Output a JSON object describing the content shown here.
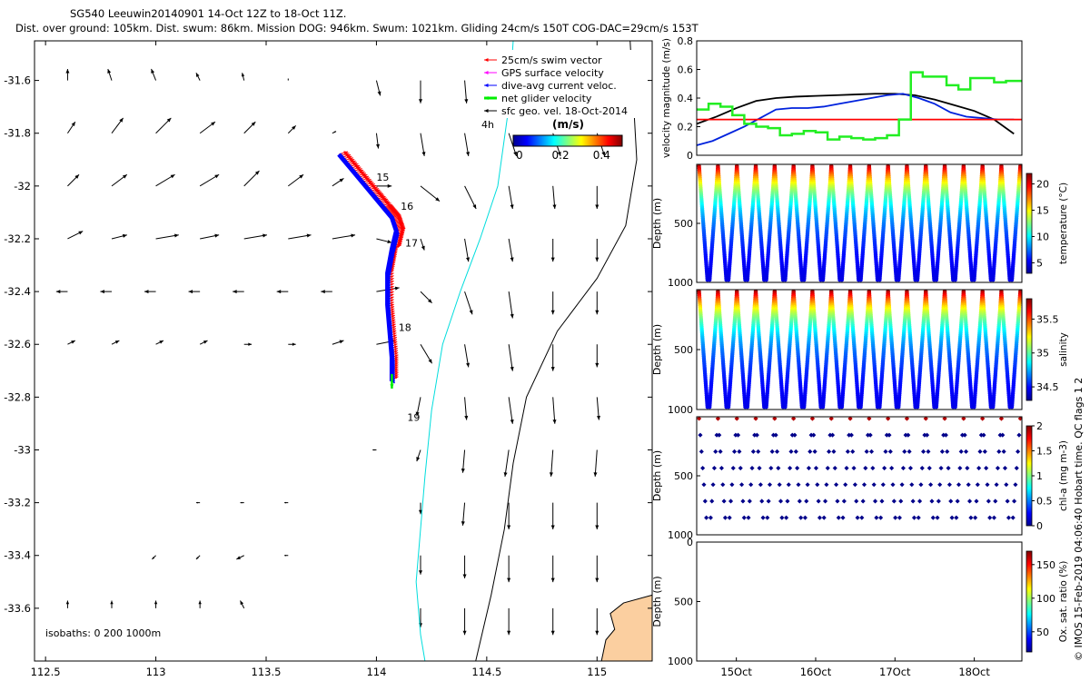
{
  "title_line1": "SG540 Leeuwin20140901 14-Oct 12Z to 18-Oct 11Z.",
  "title_line2": "Dist. over ground: 105km. Dist. swum: 86km. Mission DOG: 946km. Swum: 1021km. Gliding 24cm/s 150T COG-DAC=29cm/s 153T",
  "colors": {
    "swim": "#ff0000",
    "gps": "#ff00ff",
    "dac": "#0000ff",
    "net": "#00ee00",
    "geo": "#000000",
    "isobath200": "#00dddd",
    "coast": "#000000",
    "land": "#fbcfa0",
    "vel_black": "#000000",
    "vel_blue": "#0022dd",
    "vel_red": "#ff0000",
    "vel_green": "#22ee22"
  },
  "map": {
    "xlim": [
      112.45,
      115.25
    ],
    "ylim": [
      -33.8,
      -31.45
    ],
    "xticks": [
      112.5,
      113,
      113.5,
      114,
      114.5,
      115
    ],
    "xtick_labels": [
      "112.5",
      "113",
      "113.5",
      "114",
      "114.5",
      "115"
    ],
    "yticks": [
      -31.6,
      -31.8,
      -32,
      -32.2,
      -32.4,
      -32.6,
      -32.8,
      -33,
      -33.2,
      -33.4,
      -33.6
    ],
    "ytick_labels": [
      "-31.6",
      "-31.8",
      "-32",
      "-32.2",
      "-32.4",
      "-32.6",
      "-32.8",
      "-33",
      "-33.2",
      "-33.4",
      "-33.6"
    ],
    "legend": [
      {
        "label": "25cm/s swim vector",
        "color_key": "swim",
        "marker": "arrow"
      },
      {
        "label": "GPS surface velocity",
        "color_key": "gps",
        "marker": "arrow"
      },
      {
        "label": "dive-avg current veloc.",
        "color_key": "dac",
        "marker": "arrow"
      },
      {
        "label": "net glider velocity",
        "color_key": "net",
        "marker": "thick-arrow"
      },
      {
        "label": "sfc geo. vel. 18-Oct-2014",
        "color_key": "geo",
        "marker": "arrow"
      }
    ],
    "colorbar": {
      "label": "(m/s)",
      "ticks": [
        "0",
        "0.2",
        "0.4"
      ],
      "min": -0.03,
      "max": 0.5,
      "note": "4h"
    },
    "day_labels": [
      {
        "text": "15",
        "lon": 114.0,
        "lat": -31.98
      },
      {
        "text": "16",
        "lon": 114.11,
        "lat": -32.09
      },
      {
        "text": "17",
        "lon": 114.13,
        "lat": -32.23
      },
      {
        "text": "18",
        "lon": 114.1,
        "lat": -32.55
      },
      {
        "text": "19",
        "lon": 114.14,
        "lat": -32.89
      }
    ],
    "isobath_note": "isobaths: 0   200  1000m",
    "track": [
      [
        113.83,
        -31.88
      ],
      [
        113.9,
        -31.95
      ],
      [
        113.97,
        -32.02
      ],
      [
        114.03,
        -32.08
      ],
      [
        114.07,
        -32.12
      ],
      [
        114.09,
        -32.17
      ],
      [
        114.07,
        -32.24
      ],
      [
        114.05,
        -32.33
      ],
      [
        114.05,
        -32.45
      ],
      [
        114.06,
        -32.55
      ],
      [
        114.07,
        -32.65
      ],
      [
        114.07,
        -32.74
      ]
    ],
    "geo_grid": {
      "lons": [
        112.6,
        112.8,
        113.0,
        113.2,
        113.4,
        113.6,
        113.8,
        114.0,
        114.2,
        114.4,
        114.6,
        114.8,
        115.0
      ],
      "lats": [
        -31.6,
        -31.8,
        -32.0,
        -32.2,
        -32.4,
        -32.6,
        -32.8,
        -33.0,
        -33.2,
        -33.4,
        -33.6,
        -33.8
      ],
      "u_cm_s": [
        [
          0.0,
          -1.0,
          -1.2,
          -1.0,
          -0.5,
          0.0,
          0.0,
          1.0,
          0.0,
          0.5,
          1.0,
          3.0,
          2.0
        ],
        [
          2.0,
          3.0,
          4.0,
          4.0,
          3.0,
          2.0,
          1.0,
          0.5,
          1.0,
          1.0,
          2.0,
          2.0,
          2.0
        ],
        [
          3.0,
          4.0,
          5.0,
          5.0,
          4.0,
          4.0,
          3.0,
          4.0,
          5.0,
          3.0,
          1.0,
          0.5,
          0.0
        ],
        [
          4.0,
          4.0,
          6.0,
          5.0,
          6.0,
          6.0,
          6.0,
          4.0,
          1.0,
          1.0,
          1.0,
          0.0,
          0.0
        ],
        [
          -3.0,
          -3.0,
          -3.0,
          -3.0,
          -3.0,
          -3.0,
          -3.0,
          6.0,
          3.0,
          2.0,
          1.0,
          0.0,
          0.0
        ],
        [
          2.0,
          2.0,
          2.0,
          2.0,
          2.0,
          2.0,
          3.0,
          5.0,
          3.0,
          1.0,
          1.0,
          0.0,
          0.0
        ],
        [
          0.0,
          0.0,
          0.0,
          0.0,
          0.0,
          0.0,
          0.0,
          0.0,
          -1.0,
          0.5,
          1.0,
          0.5,
          0.5
        ],
        [
          0.0,
          0.0,
          0.0,
          0.0,
          0.0,
          0.0,
          0.0,
          -1.0,
          -1.0,
          -0.5,
          -1.0,
          -0.5,
          -0.5
        ],
        [
          0.0,
          0.0,
          0.0,
          -1.0,
          -1.0,
          -1.0,
          0.0,
          0.0,
          0.0,
          -0.5,
          0.0,
          0.0,
          0.0
        ],
        [
          0.0,
          0.0,
          -1.0,
          -1.0,
          -2.0,
          -1.0,
          0.0,
          0.0,
          0.0,
          0.0,
          0.0,
          0.0,
          0.0
        ],
        [
          0.0,
          0.0,
          0.0,
          0.0,
          -1.0,
          0.0,
          0.0,
          0.0,
          0.0,
          0.0,
          0.0,
          0.0,
          0.0
        ],
        [
          0.0,
          0.0,
          0.0,
          0.0,
          0.0,
          0.0,
          0.0,
          0.0,
          0.0,
          0.0,
          0.0,
          0.0,
          0.0
        ]
      ],
      "v_cm_s": [
        [
          3.0,
          3.0,
          3.0,
          2.0,
          2.0,
          0.5,
          0.0,
          -4.0,
          -6.0,
          -6.0,
          -6.0,
          -6.0,
          -6.0
        ],
        [
          3.0,
          4.0,
          4.0,
          3.0,
          3.0,
          2.0,
          0.5,
          -4.0,
          -6.0,
          -6.0,
          -6.0,
          -6.0,
          -6.0
        ],
        [
          3.0,
          3.0,
          3.0,
          3.0,
          4.0,
          3.0,
          2.0,
          0.0,
          -4.0,
          -6.0,
          -6.0,
          -6.0,
          -6.0
        ],
        [
          2.0,
          1.0,
          1.0,
          1.0,
          1.0,
          1.0,
          1.0,
          -1.0,
          -3.0,
          -6.0,
          -6.0,
          -6.0,
          -6.0
        ],
        [
          0.0,
          0.0,
          0.0,
          0.0,
          0.0,
          0.0,
          0.0,
          1.0,
          -3.0,
          -6.0,
          -7.0,
          -6.0,
          -6.0
        ],
        [
          1.0,
          1.0,
          1.0,
          1.0,
          0.0,
          0.0,
          1.0,
          1.0,
          -5.0,
          -6.0,
          -7.0,
          -7.0,
          -6.0
        ],
        [
          0.0,
          0.0,
          0.0,
          0.0,
          0.0,
          0.0,
          0.0,
          0.0,
          -5.0,
          -6.0,
          -7.0,
          -7.0,
          -6.0
        ],
        [
          0.0,
          0.0,
          0.0,
          0.0,
          0.0,
          0.0,
          0.0,
          0.0,
          -3.0,
          -6.0,
          -7.0,
          -7.0,
          -7.0
        ],
        [
          0.0,
          0.0,
          0.0,
          0.0,
          0.0,
          0.0,
          0.0,
          0.0,
          -3.0,
          -6.0,
          -7.0,
          -7.0,
          -7.0
        ],
        [
          0.0,
          0.0,
          -1.0,
          -1.0,
          -1.0,
          0.0,
          0.0,
          0.0,
          -5.0,
          -6.0,
          -7.0,
          -7.0,
          -7.0
        ],
        [
          2.0,
          2.0,
          2.0,
          2.0,
          2.0,
          0.0,
          0.0,
          0.0,
          -5.0,
          -7.0,
          -7.0,
          -7.0,
          -7.0
        ],
        [
          2.0,
          2.0,
          2.0,
          2.0,
          2.0,
          2.0,
          2.0,
          2.0,
          2.0,
          2.0,
          2.0,
          2.0,
          2.0
        ]
      ]
    },
    "isobath200": [
      [
        114.62,
        -31.45
      ],
      [
        114.6,
        -31.7
      ],
      [
        114.55,
        -32.0
      ],
      [
        114.47,
        -32.2
      ],
      [
        114.38,
        -32.4
      ],
      [
        114.3,
        -32.6
      ],
      [
        114.25,
        -32.85
      ],
      [
        114.22,
        -33.1
      ],
      [
        114.2,
        -33.3
      ],
      [
        114.18,
        -33.5
      ],
      [
        114.2,
        -33.7
      ],
      [
        114.22,
        -33.8
      ]
    ],
    "isobath1000": [
      [
        115.15,
        -31.45
      ],
      [
        115.18,
        -31.9
      ],
      [
        115.13,
        -32.15
      ],
      [
        115.0,
        -32.35
      ],
      [
        114.82,
        -32.55
      ],
      [
        114.68,
        -32.8
      ],
      [
        114.62,
        -33.05
      ],
      [
        114.58,
        -33.3
      ],
      [
        114.52,
        -33.55
      ],
      [
        114.45,
        -33.8
      ]
    ],
    "coast": [
      [
        115.25,
        -33.6
      ],
      [
        115.1,
        -33.62
      ],
      [
        115.08,
        -33.7
      ],
      [
        115.05,
        -33.8
      ]
    ]
  },
  "chart_data": [
    {
      "type": "line",
      "title": "velocity magnitude",
      "ylabel": "velocity magnitude (m/s)",
      "ylim": [
        0,
        0.8
      ],
      "yticks": [
        0,
        0.2,
        0.4,
        0.6,
        0.8
      ],
      "ytick_labels": [
        "0",
        "0.2",
        "0.4",
        "0.6",
        "0.8"
      ],
      "xlim": [
        14.5,
        18.6
      ],
      "series": [
        {
          "name": "net glider velocity",
          "color_key": "vel_black",
          "x": [
            14.5,
            14.75,
            15.0,
            15.25,
            15.5,
            15.75,
            16.0,
            16.25,
            16.5,
            16.75,
            17.0,
            17.25,
            17.5,
            17.75,
            18.0,
            18.25,
            18.5
          ],
          "y": [
            0.22,
            0.27,
            0.33,
            0.38,
            0.4,
            0.41,
            0.415,
            0.42,
            0.425,
            0.43,
            0.43,
            0.42,
            0.39,
            0.35,
            0.31,
            0.25,
            0.15
          ]
        },
        {
          "name": "dive-avg current",
          "color_key": "vel_blue",
          "x": [
            14.5,
            14.7,
            14.9,
            15.1,
            15.3,
            15.5,
            15.7,
            15.9,
            16.1,
            16.3,
            16.5,
            16.7,
            16.9,
            17.1,
            17.3,
            17.5,
            17.7,
            17.9,
            18.1,
            18.3,
            18.5
          ],
          "y": [
            0.07,
            0.1,
            0.15,
            0.2,
            0.26,
            0.32,
            0.33,
            0.33,
            0.34,
            0.36,
            0.38,
            0.4,
            0.42,
            0.43,
            0.4,
            0.36,
            0.3,
            0.27,
            0.26,
            0.25,
            0.25
          ]
        },
        {
          "name": "swim speed",
          "color_key": "vel_red",
          "x": [
            14.5,
            18.6
          ],
          "y": [
            0.25,
            0.25
          ]
        },
        {
          "name": "GPS surface velocity",
          "color_key": "vel_green",
          "step": true,
          "x": [
            14.5,
            14.65,
            14.8,
            14.95,
            15.1,
            15.25,
            15.4,
            15.55,
            15.7,
            15.85,
            16.0,
            16.15,
            16.3,
            16.45,
            16.6,
            16.75,
            16.9,
            17.05,
            17.2,
            17.35,
            17.5,
            17.65,
            17.8,
            17.95,
            18.1,
            18.25,
            18.4,
            18.55
          ],
          "y": [
            0.32,
            0.36,
            0.34,
            0.28,
            0.22,
            0.2,
            0.19,
            0.14,
            0.15,
            0.17,
            0.16,
            0.11,
            0.13,
            0.12,
            0.11,
            0.12,
            0.14,
            0.25,
            0.58,
            0.55,
            0.55,
            0.49,
            0.46,
            0.54,
            0.54,
            0.51,
            0.52,
            0.52
          ]
        }
      ]
    },
    {
      "type": "scatter",
      "variable": "temperature",
      "cbar_label": "temperature (°C)",
      "cbar_ticks": [
        "5",
        "10",
        "15",
        "20"
      ],
      "cbar_values": [
        5,
        10,
        15,
        20
      ],
      "cmin": 3,
      "cmax": 22,
      "ylabel": "Depth (m)",
      "ylim": [
        1000,
        0
      ],
      "ytick_values": [
        500,
        1000
      ],
      "ytick_labels": [
        "500",
        "1000"
      ],
      "xlim": [
        14.5,
        18.6
      ],
      "n_dives": 17,
      "style": "dense-v",
      "surface_value": 21,
      "deep_value": 4,
      "scale": 320
    },
    {
      "type": "scatter",
      "variable": "salinity",
      "cbar_label": "salinity",
      "cbar_ticks": [
        "34.5",
        "35",
        "35.5"
      ],
      "cbar_values": [
        34.5,
        35.0,
        35.5
      ],
      "cmin": 34.3,
      "cmax": 35.8,
      "ylabel": "Depth (m)",
      "ylim": [
        1000,
        0
      ],
      "ytick_values": [
        500,
        1000
      ],
      "ytick_labels": [
        "500",
        "1000"
      ],
      "xlim": [
        14.5,
        18.6
      ],
      "n_dives": 17,
      "style": "dense-v",
      "surface_value": 35.75,
      "deep_value": 34.4,
      "scale": 300
    },
    {
      "type": "scatter",
      "variable": "chl-a",
      "cbar_label": "chl-a (mg m-3)",
      "cbar_ticks": [
        "0",
        "0.5",
        "1",
        "1.5",
        "2"
      ],
      "cbar_values": [
        0,
        0.5,
        1,
        1.5,
        2
      ],
      "cmin": 0,
      "cmax": 2,
      "ylabel": "Depth (m)",
      "ylim": [
        1000,
        0
      ],
      "ytick_values": [
        500,
        1000
      ],
      "ytick_labels": [
        "500",
        "1000"
      ],
      "xlim": [
        14.5,
        18.6
      ],
      "n_dives": 17,
      "style": "sparse-v",
      "surface_value": 1.9,
      "deep_value": 0.02
    },
    {
      "type": "scatter",
      "variable": "oxygen",
      "cbar_label": "Ox. sat. ratio (%)",
      "cbar_ticks": [
        "50",
        "100",
        "150"
      ],
      "cbar_values": [
        50,
        100,
        150
      ],
      "cmin": 20,
      "cmax": 170,
      "ylabel": "Depth (m)",
      "ylim": [
        1000,
        0
      ],
      "ytick_values": [
        0,
        500,
        1000
      ],
      "ytick_labels": [
        "0",
        "500",
        "1000"
      ],
      "xlim": [
        14.5,
        18.6
      ],
      "n_dives": 0,
      "style": "empty",
      "xtick_values": [
        15,
        16,
        17,
        18
      ],
      "xtick_labels": [
        "15Oct",
        "16Oct",
        "17Oct",
        "18Oct"
      ]
    }
  ],
  "footer_vertical": "© IMOS 15-Feb-2019 04:06:40 Hobart time. QC flags 1  2"
}
